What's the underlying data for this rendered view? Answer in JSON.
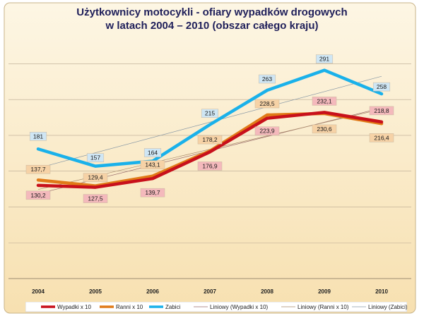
{
  "title_line1": "Użytkownicy motocykli - ofiary wypadków drogowych",
  "title_line2": "w latach 2004 – 2010 (obszar całego kraju)",
  "colors": {
    "background_top": "#fdf6e4",
    "background_bottom": "#f7e0b0",
    "wypadki": "#c8101b",
    "ranni": "#e07a18",
    "zabici": "#1ab1ea",
    "label_red_bg": "#f4b9bc",
    "label_orange_bg": "#f6d2a6",
    "label_blue_bg": "#cfe6f4"
  },
  "chart_data": {
    "type": "line",
    "title": "Użytkownicy motocykli - ofiary wypadków drogowych w latach 2004 – 2010 (obszar całego kraju)",
    "categories": [
      "2004",
      "2005",
      "2006",
      "2007",
      "2008",
      "2009",
      "2010"
    ],
    "ylim": [
      0,
      330
    ],
    "grid": true,
    "legend_position": "bottom",
    "series": [
      {
        "name": "Wypadki x 10",
        "key": "wypadki",
        "values": [
          130.2,
          127.5,
          139.7,
          176.9,
          223.9,
          232.1,
          218.8
        ],
        "labels": [
          "130,2",
          "127,5",
          "139,7",
          "176,9",
          "223,9",
          "232,1",
          "218,8"
        ]
      },
      {
        "name": "Ranni x 10",
        "key": "ranni",
        "values": [
          137.7,
          129.4,
          143.1,
          178.2,
          228.5,
          230.6,
          216.4
        ],
        "labels": [
          "137,7",
          "129,4",
          "143,1",
          "178,2",
          "228,5",
          "230,6",
          "216,4"
        ]
      },
      {
        "name": "Zabici",
        "key": "zabici",
        "values": [
          181,
          157,
          164,
          215,
          263,
          291,
          258
        ],
        "labels": [
          "181",
          "157",
          "164",
          "215",
          "263",
          "291",
          "258"
        ]
      }
    ],
    "trendlines": [
      {
        "name": "Liniowy (Wypadki x 10)",
        "of": "wypadki"
      },
      {
        "name": "Liniowy (Ranni x 10)",
        "of": "ranni"
      },
      {
        "name": "Liniowy (Zabici)",
        "of": "zabici"
      }
    ]
  }
}
